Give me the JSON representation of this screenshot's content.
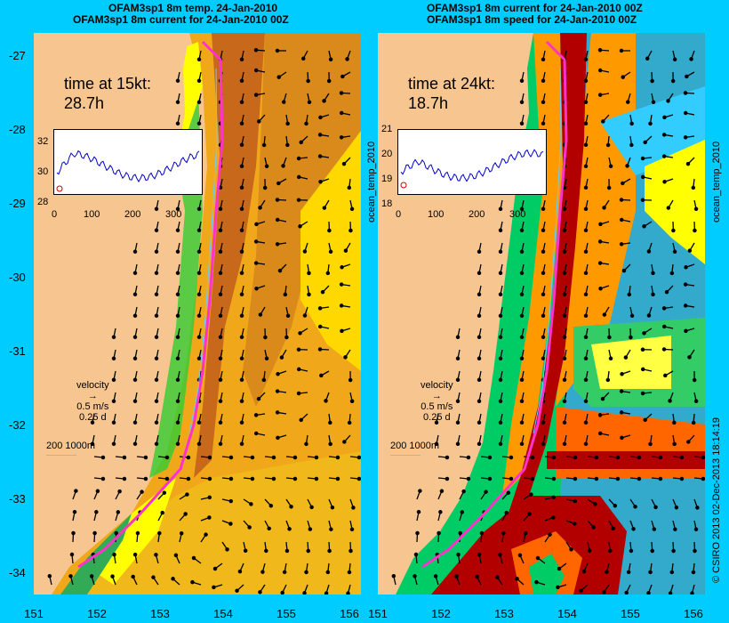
{
  "left_panel": {
    "title_line1": "OFAM3sp1 8m temp. 24-Jan-2010",
    "title_line2": "OFAM3sp1 8m current for 24-Jan-2010 00Z",
    "time_label": "time at 15kt:",
    "time_value": "28.7h",
    "inset_yticks": [
      "32",
      "30",
      "28"
    ],
    "inset_xticks": [
      "0",
      "100",
      "200",
      "300"
    ],
    "side_label": "ocean_temp_2010"
  },
  "right_panel": {
    "title_line1": "OFAM3sp1 8m current for 24-Jan-2010 00Z",
    "title_line2": "OFAM3sp1 8m speed for 24-Jan-2010 00Z",
    "time_label": "time at 24kt:",
    "time_value": "18.7h",
    "inset_yticks": [
      "21",
      "20",
      "19",
      "18"
    ],
    "inset_xticks": [
      "0",
      "100",
      "200",
      "300"
    ],
    "side_label": "ocean_temp_2010"
  },
  "legend": {
    "velocity": "velocity",
    "speed": "0.5 m/s",
    "duration": "0.25 d",
    "contours": "200  1000m"
  },
  "axes": {
    "yticks": [
      "-27",
      "-28",
      "-29",
      "-30",
      "-31",
      "-32",
      "-33",
      "-34"
    ],
    "xticks": [
      "151",
      "152",
      "153",
      "154",
      "155",
      "156"
    ]
  },
  "credit": "© CSIRO 2013   02-Dec-2013 18:14:19",
  "colors": {
    "background": "#00ccff",
    "land": "#f7c690",
    "track": "#ff33cc",
    "warm": "#d98a1a",
    "hot": "#b20000"
  }
}
